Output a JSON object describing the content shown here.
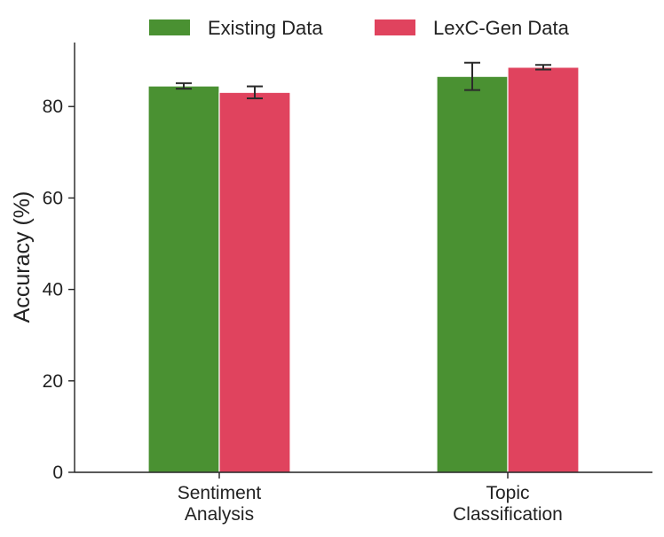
{
  "chart_data": {
    "type": "bar",
    "title": "",
    "xlabel": "",
    "ylabel": "Accuracy (%)",
    "ylim": [
      0,
      94
    ],
    "yticks": [
      0,
      20,
      40,
      60,
      80
    ],
    "ytick_labels": [
      "0",
      "20",
      "40",
      "60",
      "80"
    ],
    "categories": [
      {
        "lines": [
          "Sentiment",
          "Analysis"
        ]
      },
      {
        "lines": [
          "Topic",
          "Classification"
        ]
      }
    ],
    "series": [
      {
        "name": "Existing Data",
        "color": "#4a9132",
        "values": [
          84.5,
          86.6
        ],
        "error": [
          0.6,
          3.0
        ]
      },
      {
        "name": "LexC-Gen Data",
        "color": "#e0435e",
        "values": [
          83.1,
          88.6
        ],
        "error": [
          1.3,
          0.5
        ]
      }
    ],
    "legend": {
      "placement": "top-center",
      "entries": [
        "Existing Data",
        "LexC-Gen Data"
      ]
    },
    "grid": false
  }
}
